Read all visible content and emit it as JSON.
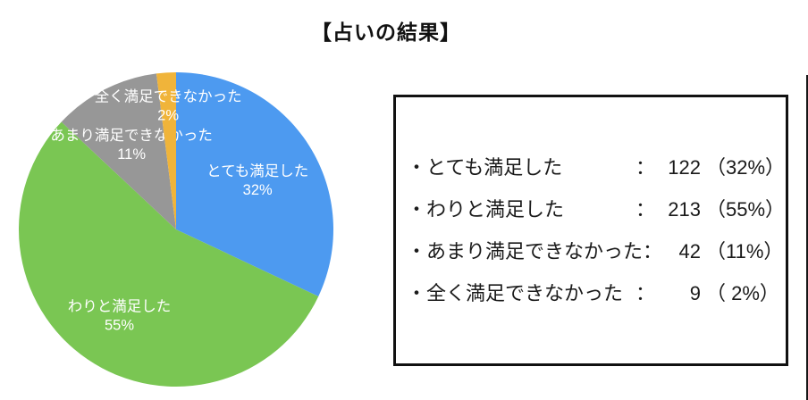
{
  "title": "【占いの結果】",
  "chart_data": {
    "type": "pie",
    "title": "【占いの結果】",
    "categories": [
      "とても満足した",
      "わりと満足した",
      "あまり満足できなかった",
      "全く満足できなかった"
    ],
    "values": [
      32,
      55,
      11,
      2
    ],
    "counts": [
      122,
      213,
      42,
      9
    ],
    "start_angle": "top",
    "direction": "clockwise",
    "label_color": "#ffffff",
    "legend_position": "right-box",
    "slices": [
      {
        "label": "とても満足した",
        "percent": 32,
        "count": 122,
        "pct_label": "32%",
        "color": "#4d9af0",
        "label_r": 108
      },
      {
        "label": "わりと満足した",
        "percent": 55,
        "count": 213,
        "pct_label": "55%",
        "color": "#7ac653",
        "label_r": 113
      },
      {
        "label": "あまり満足できなかった",
        "percent": 11,
        "count": 42,
        "pct_label": "11%",
        "color": "#979797",
        "label_r": 110
      },
      {
        "label": "全く満足できなかった",
        "percent": 2,
        "count": 9,
        "pct_label": "2%",
        "color": "#f0b43a",
        "label_r": 142
      }
    ]
  },
  "legend": {
    "rows": [
      {
        "label": "・とても満足した",
        "colon": "：",
        "count": "122",
        "pct": "（32%）"
      },
      {
        "label": "・わりと満足した",
        "colon": "：",
        "count": "213",
        "pct": "（55%）"
      },
      {
        "label": "・あまり満足できなかった",
        "colon": "：",
        "count": "42",
        "pct": "（11%）"
      },
      {
        "label": "・全く満足できなかった",
        "colon": "：",
        "count": "9",
        "pct": "（ 2%）"
      }
    ]
  }
}
